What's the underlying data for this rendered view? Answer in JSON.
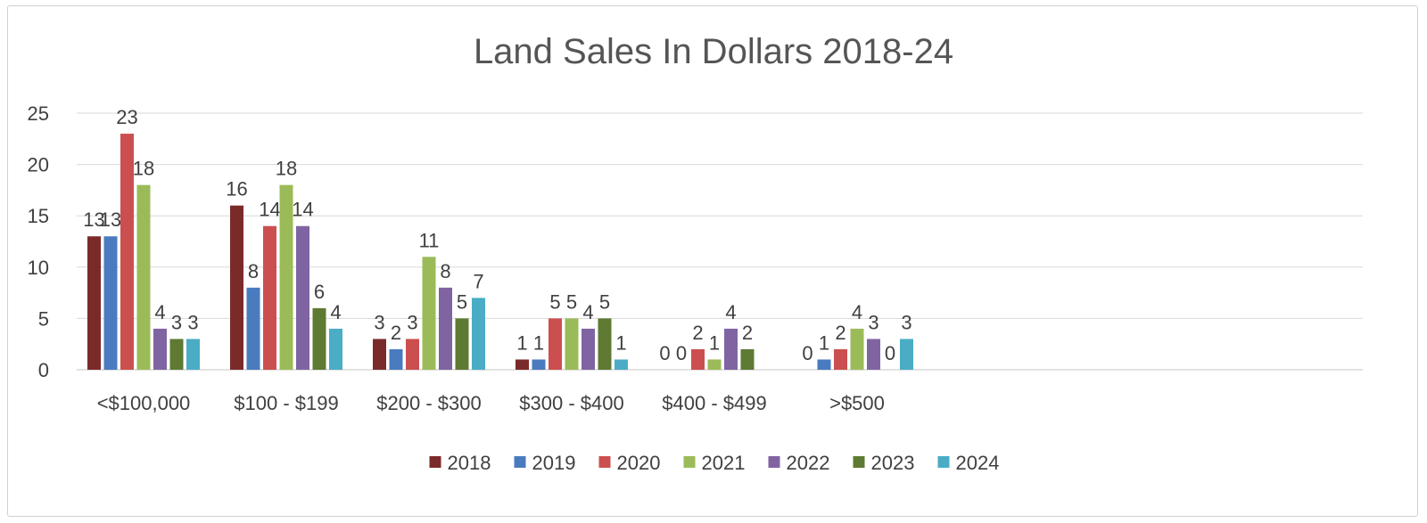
{
  "chart_data": {
    "type": "bar",
    "title": "Land Sales In Dollars 2018-24",
    "xlabel": "",
    "ylabel": "",
    "ylim": [
      0,
      25
    ],
    "yticks": [
      0,
      5,
      10,
      15,
      20,
      25
    ],
    "grid": true,
    "legend_position": "bottom",
    "categories": [
      "<$100,000",
      "$100 - $199",
      "$200 - $300",
      "$300 - $400",
      "$400 - $499",
      ">$500"
    ],
    "series": [
      {
        "name": "2018",
        "color": "#7b2a2a",
        "values": [
          13,
          16,
          3,
          1,
          0,
          0
        ]
      },
      {
        "name": "2019",
        "color": "#4a7bbf",
        "values": [
          13,
          8,
          2,
          1,
          0,
          1
        ]
      },
      {
        "name": "2020",
        "color": "#cc4f4f",
        "values": [
          23,
          14,
          3,
          5,
          2,
          2
        ]
      },
      {
        "name": "2021",
        "color": "#9bbb59",
        "values": [
          18,
          18,
          11,
          5,
          1,
          4
        ]
      },
      {
        "name": "2022",
        "color": "#8064a2",
        "values": [
          4,
          14,
          8,
          4,
          4,
          3
        ]
      },
      {
        "name": "2023",
        "color": "#5e7a33",
        "values": [
          3,
          6,
          5,
          5,
          2,
          0
        ]
      },
      {
        "name": "2024",
        "color": "#4bacc6",
        "values": [
          3,
          4,
          7,
          1,
          null,
          3
        ]
      }
    ]
  }
}
